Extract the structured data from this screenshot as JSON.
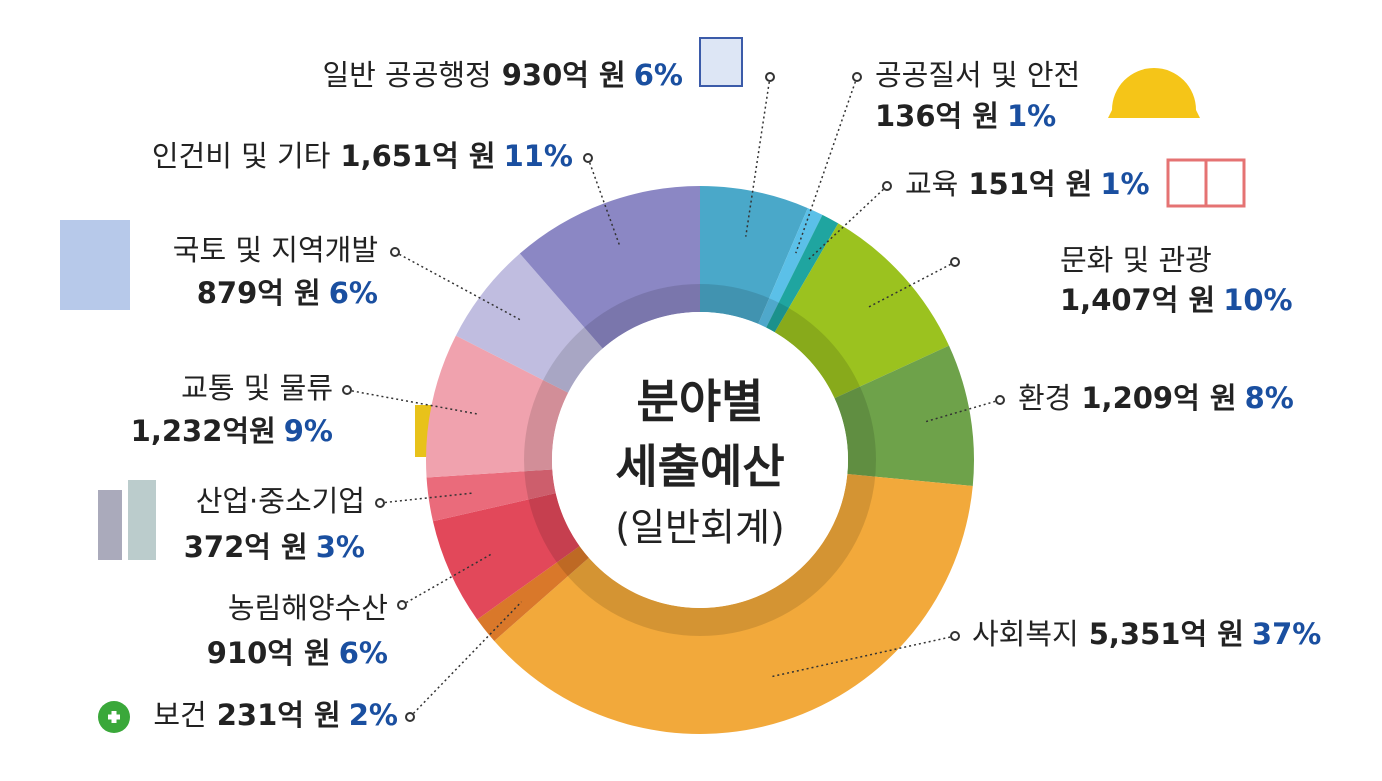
{
  "chart_data": {
    "type": "donut",
    "center_text": [
      "분야별",
      "세출예산",
      "(일반회계)"
    ],
    "categories": [
      "일반 공공행정",
      "공공질서 및 안전",
      "교육",
      "문화 및 관광",
      "환경",
      "사회복지",
      "보건",
      "농림해양수산",
      "산업·중소기업",
      "교통 및 물류",
      "국토 및 지역개발",
      "인건비 및 기타"
    ],
    "values": [
      930,
      136,
      151,
      1407,
      1209,
      5351,
      231,
      910,
      372,
      1232,
      879,
      1651
    ],
    "value_labels": [
      "930억 원",
      "136억 원",
      "151억 원",
      "1,407억 원",
      "1,209억 원",
      "5,351억 원",
      "231억 원",
      "910억 원",
      "372억 원",
      "1,232억원",
      "879억 원",
      "1,651억 원"
    ],
    "shares": [
      6,
      1,
      1,
      10,
      8,
      37,
      2,
      6,
      3,
      9,
      6,
      11
    ],
    "share_labels": [
      "6%",
      "1%",
      "1%",
      "10%",
      "8%",
      "37%",
      "2%",
      "6%",
      "3%",
      "9%",
      "6%",
      "11%"
    ],
    "colors": [
      "#4aa8c9",
      "#5bc0e8",
      "#1fa5a0",
      "#9bc21f",
      "#6ea24a",
      "#f2a93b",
      "#d9782a",
      "#e2485a",
      "#ea6b7b",
      "#f0a2ae",
      "#c0bde0",
      "#8b87c4"
    ]
  }
}
